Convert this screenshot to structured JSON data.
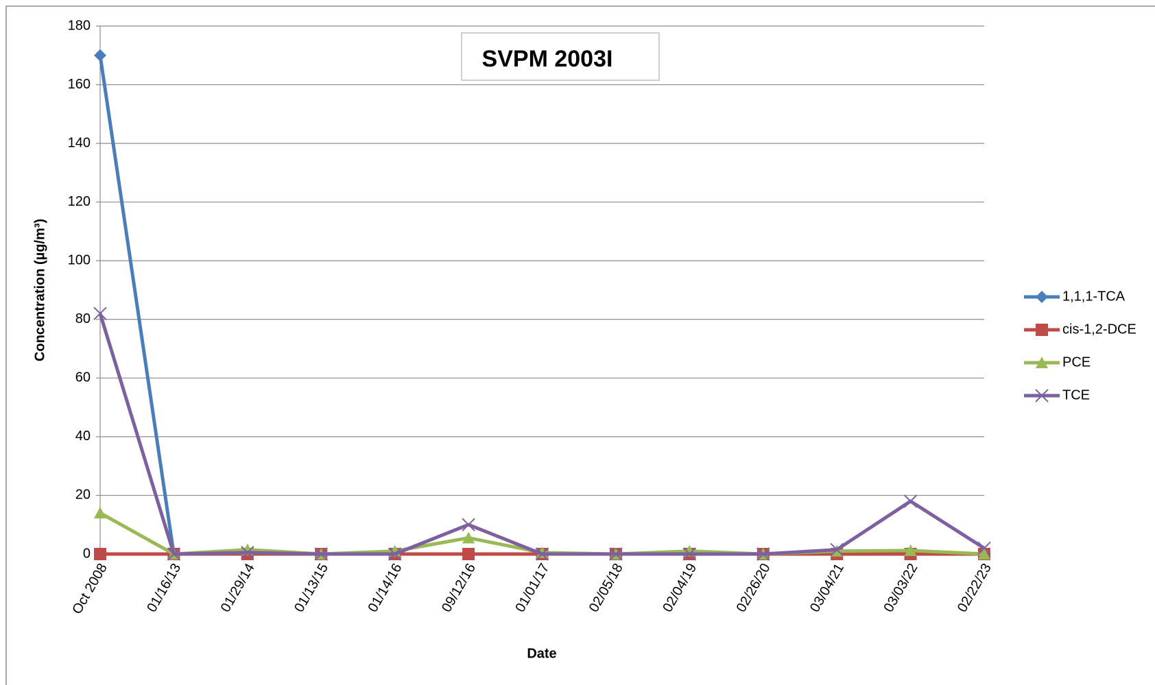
{
  "chart_data": {
    "type": "line",
    "title": "SVPM 2003I",
    "x_label": "Date",
    "y_label": "Concentration (µg/m³)",
    "categories": [
      "Oct 2008",
      "01/16/13",
      "01/29/14",
      "01/13/15",
      "01/14/16",
      "09/12/16",
      "01/01/17",
      "02/05/18",
      "02/04/19",
      "02/26/20",
      "03/04/21",
      "03/03/22",
      "02/22/23"
    ],
    "series": [
      {
        "name": "1,1,1-TCA",
        "color": "#4a7ebb",
        "marker": "diamond",
        "values": [
          170,
          0,
          0,
          0,
          0,
          0,
          0,
          0,
          0,
          0,
          0,
          0,
          0
        ]
      },
      {
        "name": "cis-1,2-DCE",
        "color": "#be4b48",
        "marker": "square",
        "values": [
          0,
          0,
          0,
          0,
          0,
          0,
          0,
          0,
          0,
          0,
          0,
          0,
          0
        ]
      },
      {
        "name": "PCE",
        "color": "#98b954",
        "marker": "triangle",
        "values": [
          14,
          0,
          1.5,
          0,
          1,
          5.5,
          0.5,
          0,
          1,
          0,
          1,
          1.2,
          0
        ]
      },
      {
        "name": "TCE",
        "color": "#7d60a0",
        "marker": "x",
        "values": [
          82,
          0,
          0.5,
          0,
          0,
          10,
          0,
          0,
          0,
          0,
          1.5,
          18,
          2
        ]
      }
    ],
    "ylim": [
      0,
      180
    ],
    "yticks": [
      0,
      20,
      40,
      60,
      80,
      100,
      120,
      140,
      160,
      180
    ],
    "grid": true,
    "legend": "right"
  }
}
